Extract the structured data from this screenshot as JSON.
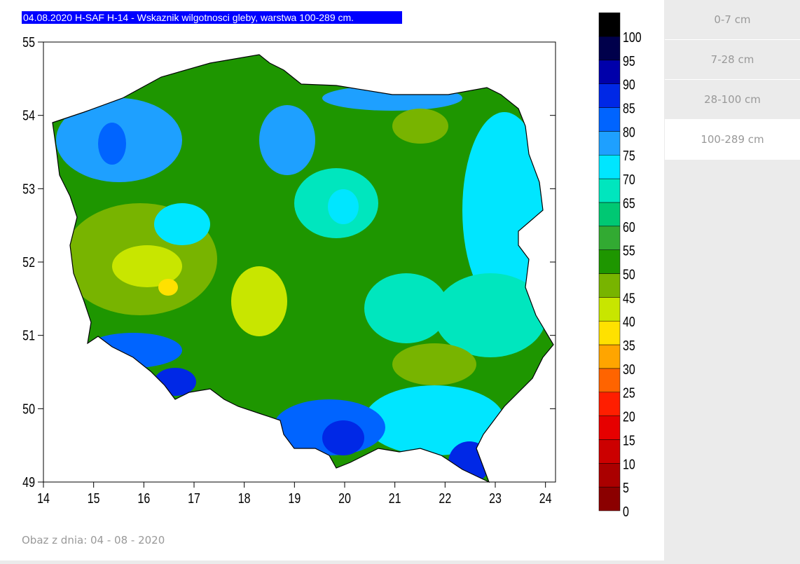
{
  "map": {
    "title": "04.08.2020 H-SAF H-14 - Wskaznik wilgotnosci gleby, warstwa 100-289 cm.",
    "xlim": [
      14,
      24.2
    ],
    "ylim": [
      49,
      55
    ],
    "xticks": [
      14,
      15,
      16,
      17,
      18,
      19,
      20,
      21,
      22,
      23,
      24
    ],
    "yticks": [
      49,
      50,
      51,
      52,
      53,
      54,
      55
    ],
    "colorbar": {
      "levels": [
        0,
        5,
        10,
        15,
        20,
        25,
        30,
        35,
        40,
        45,
        50,
        55,
        60,
        65,
        70,
        75,
        80,
        85,
        90,
        95,
        100
      ],
      "colors": [
        "#8b0000",
        "#aa0000",
        "#cc0000",
        "#e60000",
        "#ff1e00",
        "#ff6400",
        "#ffa500",
        "#ffe100",
        "#c8e600",
        "#78b400",
        "#1e9600",
        "#32aa32",
        "#00c873",
        "#00e6be",
        "#00e6ff",
        "#1ea0ff",
        "#0064ff",
        "#0028e6",
        "#0000aa",
        "#00004b",
        "#000000"
      ]
    }
  },
  "tabs": [
    "0-7 cm",
    "7-28 cm",
    "28-100 cm",
    "100-289 cm"
  ],
  "active_tab": 3,
  "footer": "Obaz z dnia: 04 - 08 - 2020"
}
